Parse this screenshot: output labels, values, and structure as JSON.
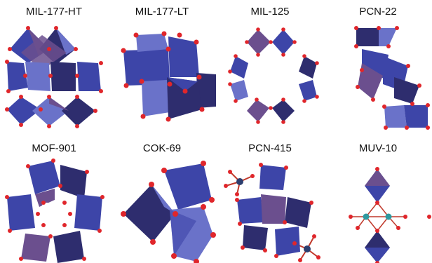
{
  "structures": [
    {
      "label": "MIL-177-HT"
    },
    {
      "label": "MIL-177-LT"
    },
    {
      "label": "MIL-125"
    },
    {
      "label": "PCN-22"
    },
    {
      "label": "MOF-901"
    },
    {
      "label": "COK-69"
    },
    {
      "label": "PCN-415"
    },
    {
      "label": "MUV-10"
    }
  ],
  "colors": {
    "polyhedron_dark": "#2e2d6e",
    "polyhedron_mid": "#3d45a8",
    "polyhedron_light": "#6a72c9",
    "polyhedron_purple": "#6b4f8e",
    "oxygen_atom": "#e0262b",
    "metal_atom_teal": "#2e9aa0",
    "metal_atom_navy": "#2c3e6e"
  }
}
